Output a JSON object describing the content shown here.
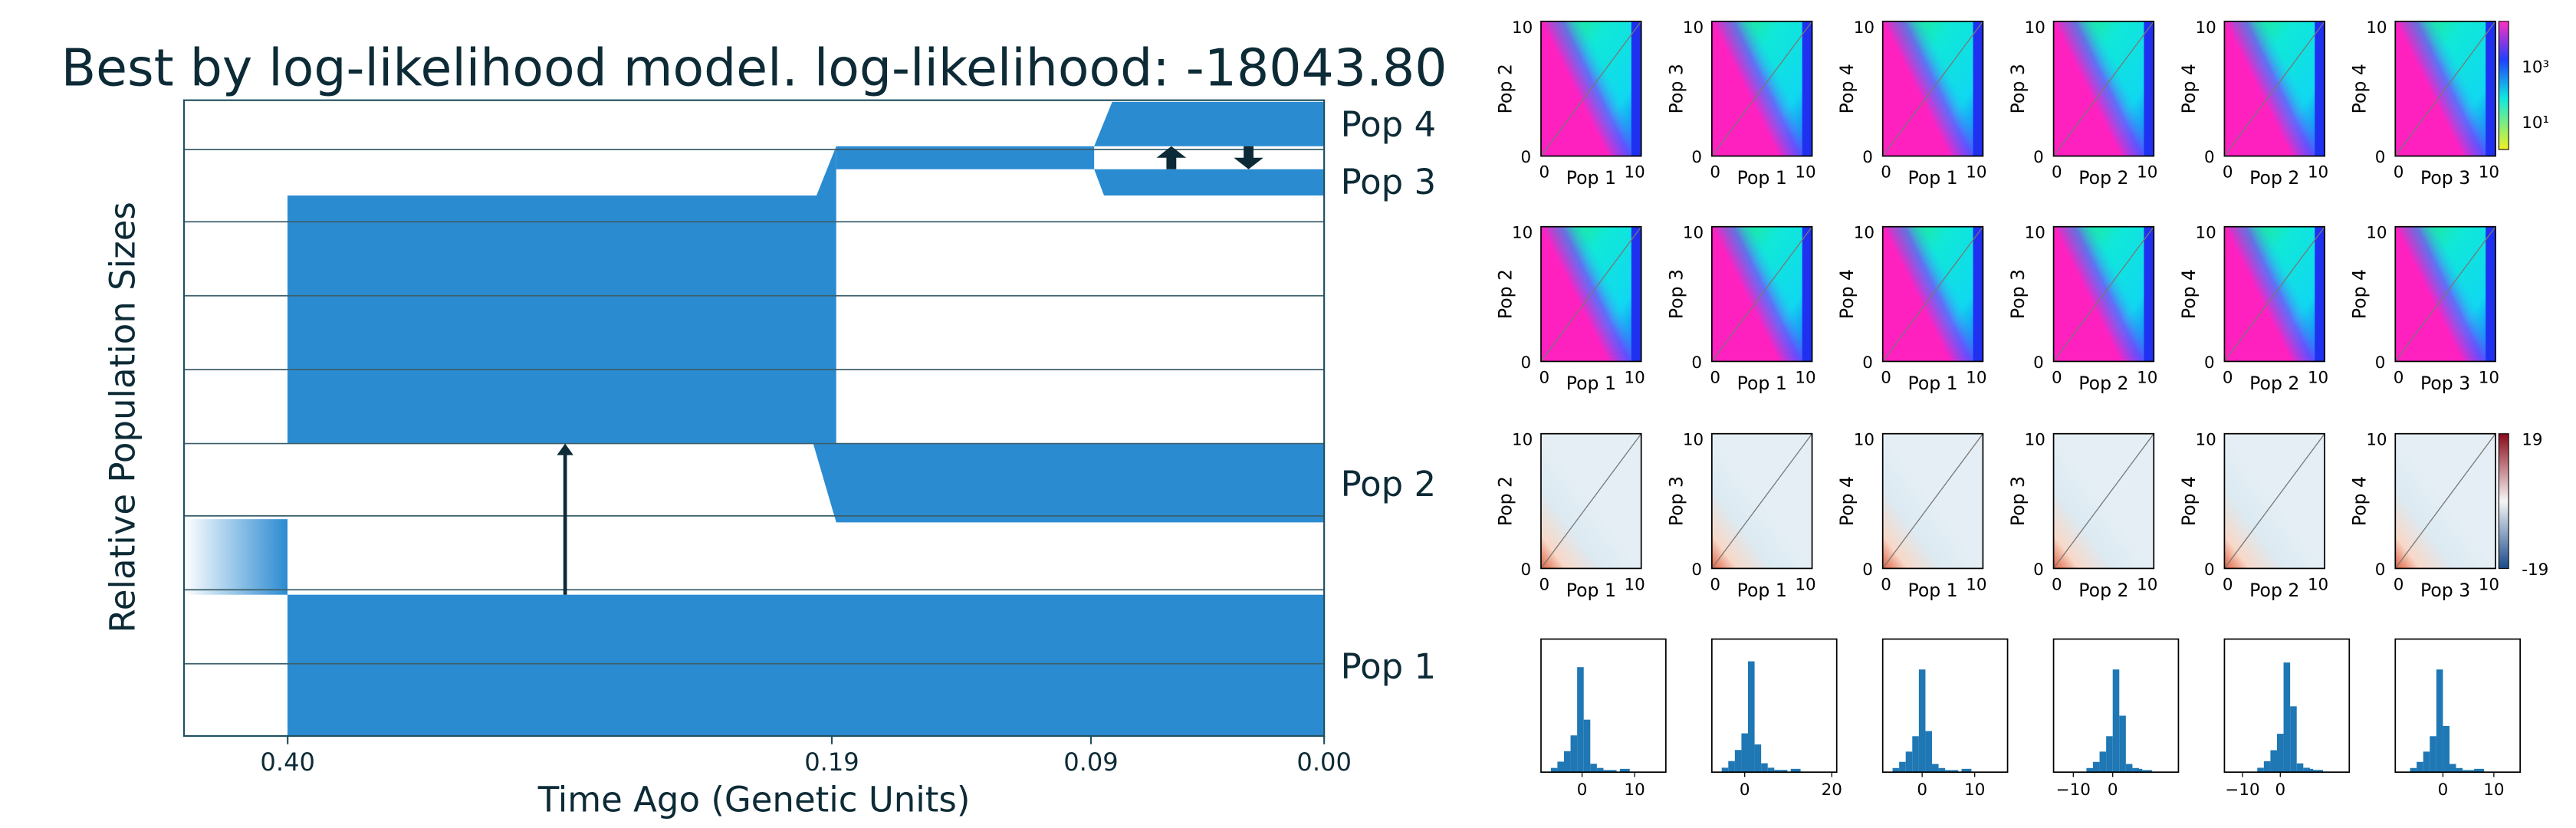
{
  "main": {
    "title": "Best by log-likelihood model. log-likelihood: -18043.80",
    "ylabel": "Relative Population Sizes",
    "xlabel": "Time Ago (Genetic Units)",
    "xlim": [
      0.44,
      0
    ],
    "xticks": [
      {
        "value": 0.4,
        "label": "0.40"
      },
      {
        "value": 0.19,
        "label": "0.19"
      },
      {
        "value": 0.09,
        "label": "0.09"
      },
      {
        "value": 0,
        "label": "0.00"
      }
    ],
    "populations": [
      "Pop 4",
      "Pop 3",
      "Pop 2",
      "Pop 1"
    ]
  },
  "panels": {
    "ylabels": [
      "Pop 2",
      "Pop 3",
      "Pop 4",
      "Pop 3",
      "Pop 4",
      "Pop 4"
    ],
    "xlabels": [
      "Pop 1",
      "Pop 1",
      "Pop 1",
      "Pop 2",
      "Pop 2",
      "Pop 3"
    ],
    "ticks": [
      "0",
      "10"
    ],
    "colorbar_top": [
      "10³",
      "10¹"
    ],
    "colorbar_bottom": [
      "19",
      "-19"
    ]
  },
  "histograms": [
    [
      "0",
      "10"
    ],
    [
      "0",
      "20"
    ],
    [
      "0",
      "10"
    ],
    [
      "−10",
      "0"
    ],
    [
      "−10",
      "0"
    ],
    [
      "0",
      "10"
    ]
  ]
}
